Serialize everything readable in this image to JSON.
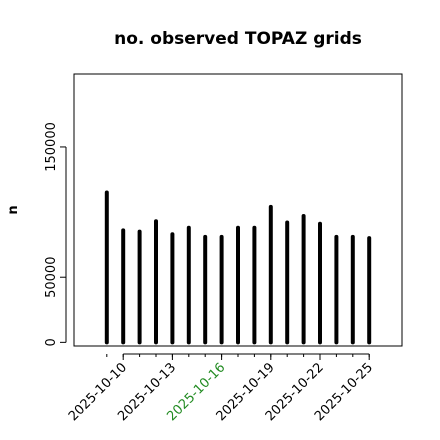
{
  "chart_data": {
    "type": "bar",
    "title": "no. observed TOPAZ grids",
    "ylabel": "n",
    "xlabel": "",
    "ylim": [
      -2800,
      206000
    ],
    "xlim": [
      "2025-10-07",
      "2025-10-27"
    ],
    "y_ticks": [
      0,
      50000,
      150000
    ],
    "y_tick_labels": [
      "0",
      "50000",
      "150000"
    ],
    "x_ticks": [
      "2025-10-10",
      "2025-10-13",
      "2025-10-16",
      "2025-10-19",
      "2025-10-22",
      "2025-10-25"
    ],
    "x_tick_labels": [
      "2025-10-10",
      "2025-10-13",
      "2025-10-16",
      "2025-10-19",
      "2025-10-22",
      "2025-10-25"
    ],
    "highlight_tick": "2025-10-16",
    "highlight_color": "#228B22",
    "bar_color": "#000000",
    "grid": false,
    "dates": [
      "2025-10-09",
      "2025-10-10",
      "2025-10-11",
      "2025-10-12",
      "2025-10-13",
      "2025-10-14",
      "2025-10-15",
      "2025-10-16",
      "2025-10-17",
      "2025-10-18",
      "2025-10-19",
      "2025-10-20",
      "2025-10-21",
      "2025-10-22",
      "2025-10-23",
      "2025-10-24",
      "2025-10-25"
    ],
    "values": [
      115000,
      86000,
      85000,
      93000,
      83000,
      88000,
      81000,
      81000,
      88000,
      88000,
      104000,
      92000,
      97000,
      91000,
      81000,
      81000,
      80000
    ]
  }
}
